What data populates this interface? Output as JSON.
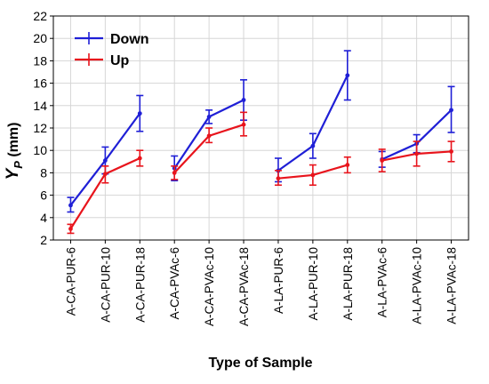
{
  "colors": {
    "down": "#1f1fd6",
    "up": "#e8141c",
    "grid": "#d6d6d6",
    "axis": "#000000"
  },
  "chart_data": {
    "type": "line",
    "xlabel": "Type of Sample",
    "ylabel_main": "Y",
    "ylabel_sub": "P",
    "ylabel_unit": " (mm)",
    "ylim": [
      2,
      22
    ],
    "yticks": [
      2,
      4,
      6,
      8,
      10,
      12,
      14,
      16,
      18,
      20,
      22
    ],
    "grid": true,
    "legend_position": "top-left",
    "categories": [
      "A-CA-PUR-6",
      "A-CA-PUR-10",
      "A-CA-PUR-18",
      "A-CA-PVAc-6",
      "A-CA-PVAc-10",
      "A-CA-PVAc-18",
      "A-LA-PUR-6",
      "A-LA-PUR-10",
      "A-LA-PUR-18",
      "A-LA-PVAc-6",
      "A-LA-PVAc-10",
      "A-LA-PVAc-18"
    ],
    "groups": [
      [
        0,
        1,
        2
      ],
      [
        3,
        4,
        5
      ],
      [
        6,
        7,
        8
      ],
      [
        9,
        10,
        11
      ]
    ],
    "series": [
      {
        "name": "Down",
        "color": "#1f1fd6",
        "values": [
          5.1,
          9.1,
          13.3,
          8.4,
          13.0,
          14.5,
          8.2,
          10.4,
          16.7,
          9.2,
          10.6,
          13.6
        ],
        "err_low": [
          4.5,
          7.9,
          11.7,
          7.3,
          12.4,
          12.7,
          7.2,
          9.3,
          14.5,
          8.5,
          9.8,
          11.6
        ],
        "err_high": [
          5.8,
          10.3,
          14.9,
          9.5,
          13.6,
          16.3,
          9.3,
          11.5,
          18.9,
          9.9,
          11.4,
          15.7
        ]
      },
      {
        "name": "Up",
        "color": "#e8141c",
        "values": [
          3.0,
          7.9,
          9.3,
          8.0,
          11.3,
          12.3,
          7.5,
          7.8,
          8.7,
          9.1,
          9.7,
          9.9
        ],
        "err_low": [
          2.6,
          7.1,
          8.6,
          7.4,
          10.7,
          11.3,
          6.9,
          6.9,
          8.0,
          8.1,
          8.6,
          9.0
        ],
        "err_high": [
          3.4,
          8.6,
          10.0,
          8.6,
          12.0,
          13.4,
          8.2,
          8.7,
          9.4,
          10.1,
          10.8,
          10.8
        ]
      }
    ]
  }
}
